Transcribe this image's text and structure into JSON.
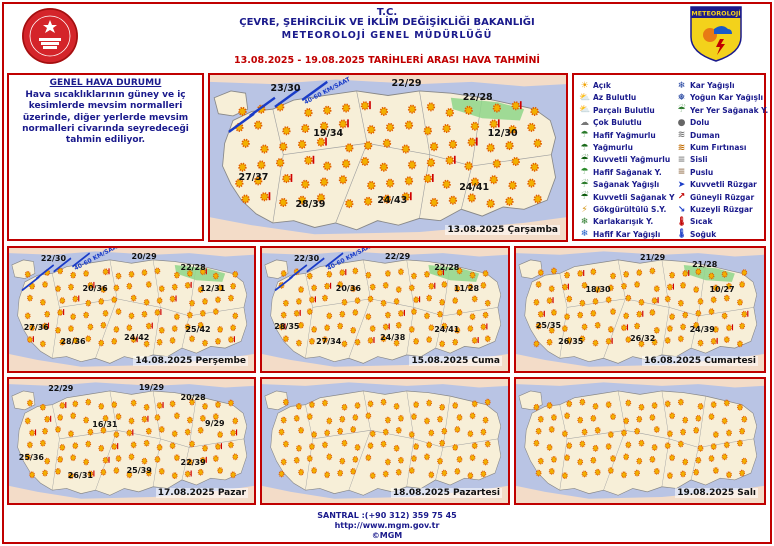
{
  "header": {
    "line1": "T.C.",
    "line2": "ÇEVRE, ŞEHİRCİLİK VE İKLİM DEĞİŞİKLİĞİ BAKANLIĞI",
    "line3": "METEOROLOJİ GENEL MÜDÜRLÜĞÜ",
    "dates": "13.08.2025  -  19.08.2025   TARİHLERİ ARASI HAVA TAHMİNİ",
    "logo_right_text": "METEOROLOJİ"
  },
  "description": {
    "title": "GENEL HAVA DURUMU",
    "body": "Hava sıcaklıklarının güney ve iç kesimlerde mevsim normalleri üzerinde, diğer yerlerde mevsim normalleri civarında seyredeceği tahmin ediliyor."
  },
  "legend": {
    "left": [
      {
        "label": "Açık",
        "icon": "sun-icon"
      },
      {
        "label": "Az Bulutlu",
        "icon": "few-clouds-icon"
      },
      {
        "label": "Parçalı Bulutlu",
        "icon": "partly-cloudy-icon"
      },
      {
        "label": "Çok Bulutlu",
        "icon": "cloudy-icon"
      },
      {
        "label": "Hafif Yağmurlu",
        "icon": "light-rain-icon"
      },
      {
        "label": "Yağmurlu",
        "icon": "rain-icon"
      },
      {
        "label": "Kuvvetli Yağmurlu",
        "icon": "heavy-rain-icon"
      },
      {
        "label": "Hafif Sağanak Y.",
        "icon": "light-shower-icon"
      },
      {
        "label": "Sağanak Yağışlı",
        "icon": "shower-icon"
      },
      {
        "label": "Kuvvetli Sağanak Y",
        "icon": "heavy-shower-icon"
      },
      {
        "label": "Gökgürültülü S.Y.",
        "icon": "thunder-icon"
      },
      {
        "label": "Karlakarışık Y.",
        "icon": "sleet-icon"
      },
      {
        "label": "Hafif Kar Yağışlı",
        "icon": "light-snow-icon"
      }
    ],
    "right": [
      {
        "label": "Kar Yağışlı",
        "icon": "snow-icon"
      },
      {
        "label": "Yoğun Kar Yağışlı",
        "icon": "heavy-snow-icon"
      },
      {
        "label": "Yer Yer Sağanak Y.",
        "icon": "scattered-shower-icon"
      },
      {
        "label": "Dolu",
        "icon": "hail-icon"
      },
      {
        "label": "Duman",
        "icon": "smoke-icon"
      },
      {
        "label": "Kum Fırtınası",
        "icon": "sandstorm-icon"
      },
      {
        "label": "Sisli",
        "icon": "fog-icon"
      },
      {
        "label": "Puslu",
        "icon": "haze-icon"
      },
      {
        "label": "Kuvvetli Rüzgar",
        "icon": "strong-wind-icon"
      },
      {
        "label": "Güneyli Rüzgar",
        "icon": "south-wind-icon"
      },
      {
        "label": "Kuzeyli Rüzgar",
        "icon": "north-wind-icon"
      },
      {
        "label": "Sıcak",
        "icon": "hot-icon"
      },
      {
        "label": "Soğuk",
        "icon": "cold-icon"
      }
    ]
  },
  "maps": [
    {
      "date": "13.08.2025 Çarşamba",
      "temps": [
        "23/30",
        "22/29",
        "22/28",
        "19/34",
        "12/30",
        "27/37",
        "28/39",
        "24/43",
        "24/41"
      ],
      "wind": "40-60 KM/SAAT"
    },
    {
      "date": "14.08.2025 Perşembe",
      "temps": [
        "22/30",
        "20/29",
        "22/28",
        "20/36",
        "12/31",
        "27/36",
        "28/36",
        "24/42",
        "25/42"
      ],
      "wind": "40-60 KM/SAAT"
    },
    {
      "date": "15.08.2025 Cuma",
      "temps": [
        "22/30",
        "22/29",
        "22/28",
        "20/36",
        "11/28",
        "28/35",
        "27/34",
        "24/38",
        "24/41"
      ],
      "wind": "40-60 KM/SAAT"
    },
    {
      "date": "16.08.2025 Cumartesi",
      "temps": [
        "21/29",
        "21/28",
        "18/30",
        "10/27",
        "25/35",
        "26/35",
        "26/32",
        "24/39"
      ],
      "wind": ""
    },
    {
      "date": "17.08.2025 Pazar",
      "temps": [
        "22/29",
        "19/29",
        "20/28",
        "16/31",
        "9/29",
        "25/36",
        "26/31",
        "25/39",
        "22/39"
      ],
      "wind": ""
    },
    {
      "date": "18.08.2025 Pazartesi",
      "temps": [],
      "wind": ""
    },
    {
      "date": "19.08.2025 Salı",
      "temps": [],
      "wind": ""
    }
  ],
  "footer": {
    "phone": "SANTRAL :(+90 312) 359 75 45",
    "url": "http://www.mgm.gov.tr",
    "copyright": "©MGM"
  }
}
